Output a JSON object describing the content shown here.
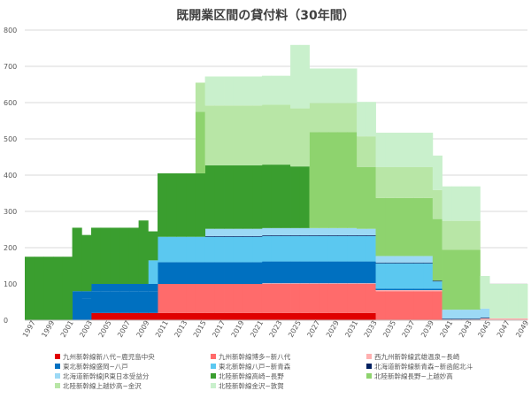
{
  "chart_data": {
    "type": "area",
    "stacked": true,
    "step": true,
    "title": "既開業区間の貸付料（30年間）",
    "xlabel": "",
    "ylabel": "",
    "ylim": [
      0,
      800
    ],
    "xlim": [
      1997,
      2050
    ],
    "y_ticks": [
      0,
      100,
      200,
      300,
      400,
      500,
      600,
      700,
      800
    ],
    "x_ticks": [
      1997,
      1999,
      2001,
      2003,
      2005,
      2007,
      2009,
      2011,
      2013,
      2015,
      2017,
      2019,
      2021,
      2023,
      2025,
      2027,
      2029,
      2031,
      2033,
      2035,
      2037,
      2039,
      2041,
      2043,
      2045,
      2047,
      2049
    ],
    "legend_position": "bottom",
    "series": [
      {
        "name": "九州新幹線新八代~鹿児島中央",
        "color": "#e00000",
        "start": 2004,
        "end": 2034,
        "value": 20
      },
      {
        "name": "九州新幹線博多~新八代",
        "color": "#ff6b6b",
        "start": 2011,
        "end": 2041,
        "value": 80
      },
      {
        "name": "西九州新幹線武雄温泉~長崎",
        "color": "#ffb0b0",
        "start": 2022,
        "end": 2052,
        "value": 5
      },
      {
        "name": "東北新幹線盛岡~八戸",
        "color": "#0070c0",
        "start": 2002,
        "end": 2032,
        "value": 80
      },
      {
        "name": "東北新幹線八戸~新青森",
        "color": "#5bc8f0",
        "start": 2010,
        "end": 2040,
        "value": 70
      },
      {
        "name": "北海道新幹線新青森~新函館北斗",
        "color": "#002060",
        "start": 2016,
        "end": 2046,
        "value": 1
      },
      {
        "name": "北海道新幹線JR東日本受益分",
        "color": "#9cd9f5",
        "start": 2016,
        "end": 2046,
        "value": 20
      },
      {
        "name": "北陸新幹線高崎~長野",
        "color": "#3a9e2f",
        "start": 1997,
        "end": 2027,
        "value": 175
      },
      {
        "name": "北陸新幹線長野~上越妙高",
        "color": "#8ed36e",
        "start": 2015,
        "end": 2045,
        "value": 165
      },
      {
        "name": "北陸新幹線上越妙高~金沢",
        "color": "#b8e6a6",
        "start": 2015,
        "end": 2045,
        "value": 80
      },
      {
        "name": "北陸新幹線金沢~敦賀",
        "color": "#c9f0cc",
        "start": 2024,
        "end": 2054,
        "value": 95
      }
    ],
    "segments": [
      {
        "series": 0,
        "x0": 2004,
        "x1": 2034,
        "v": 20
      },
      {
        "series": 1,
        "x0": 2011,
        "x1": 2041,
        "v": 80
      },
      {
        "series": 2,
        "x0": 2022,
        "x1": 2034,
        "v": 2
      },
      {
        "series": 2,
        "x0": 2034,
        "x1": 2041,
        "v": 3
      },
      {
        "series": 2,
        "x0": 2041,
        "x1": 2045,
        "v": 2
      },
      {
        "series": 2,
        "x0": 2045,
        "x1": 2050,
        "v": 5
      },
      {
        "series": 3,
        "x0": 2003,
        "x1": 2032,
        "v": 60
      },
      {
        "series": 3,
        "x0": 2002,
        "x1": 2003,
        "v": 80
      },
      {
        "series": 3,
        "x0": 2003,
        "x1": 2011,
        "v": 20
      },
      {
        "series": 3,
        "x0": 2032,
        "x1": 2034,
        "v": 60
      },
      {
        "series": 3,
        "x0": 2034,
        "x1": 2041,
        "v": 4
      },
      {
        "series": 4,
        "x0": 2010,
        "x1": 2011,
        "v": 65
      },
      {
        "series": 4,
        "x0": 2011,
        "x1": 2040,
        "v": 70
      },
      {
        "series": 4,
        "x0": 2040,
        "x1": 2041,
        "v": 20
      },
      {
        "series": 5,
        "x0": 2016,
        "x1": 2034,
        "v": 2
      },
      {
        "series": 5,
        "x0": 2034,
        "x1": 2046,
        "v": 2
      },
      {
        "series": 6,
        "x0": 2016,
        "x1": 2032,
        "v": 20
      },
      {
        "series": 6,
        "x0": 2032,
        "x1": 2034,
        "v": 18
      },
      {
        "series": 6,
        "x0": 2034,
        "x1": 2040,
        "v": 18
      },
      {
        "series": 6,
        "x0": 2041,
        "x1": 2046,
        "v": 25
      },
      {
        "series": 7,
        "x0": 1997,
        "x1": 2002,
        "v": 175
      },
      {
        "series": 7,
        "x0": 2002,
        "x1": 2003,
        "v": 175
      },
      {
        "series": 7,
        "x0": 2003,
        "x1": 2009,
        "v": 155
      },
      {
        "series": 7,
        "x0": 2009,
        "x1": 2010,
        "v": 175
      },
      {
        "series": 7,
        "x0": 2010,
        "x1": 2011,
        "v": 80
      },
      {
        "series": 7,
        "x0": 2011,
        "x1": 2016,
        "v": 175
      },
      {
        "series": 7,
        "x0": 2016,
        "x1": 2025,
        "v": 175
      },
      {
        "series": 7,
        "x0": 2025,
        "x1": 2027,
        "v": 170
      },
      {
        "series": 8,
        "x0": 2015,
        "x1": 2016,
        "v": 170
      },
      {
        "series": 8,
        "x0": 2027,
        "x1": 2032,
        "v": 265
      },
      {
        "series": 8,
        "x0": 2032,
        "x1": 2034,
        "v": 170
      },
      {
        "series": 8,
        "x0": 2034,
        "x1": 2040,
        "v": 160
      },
      {
        "series": 8,
        "x0": 2040,
        "x1": 2041,
        "v": 170
      },
      {
        "series": 8,
        "x0": 2041,
        "x1": 2045,
        "v": 165
      },
      {
        "series": 9,
        "x0": 2015,
        "x1": 2016,
        "v": 80
      },
      {
        "series": 9,
        "x0": 2016,
        "x1": 2025,
        "v": 165
      },
      {
        "series": 9,
        "x0": 2025,
        "x1": 2027,
        "v": 160
      },
      {
        "series": 9,
        "x0": 2027,
        "x1": 2032,
        "v": 80
      },
      {
        "series": 9,
        "x0": 2032,
        "x1": 2034,
        "v": 85
      },
      {
        "series": 9,
        "x0": 2034,
        "x1": 2040,
        "v": 85
      },
      {
        "series": 9,
        "x0": 2040,
        "x1": 2041,
        "v": 80
      },
      {
        "series": 9,
        "x0": 2041,
        "x1": 2045,
        "v": 80
      },
      {
        "series": 10,
        "x0": 2016,
        "x1": 2025,
        "v": 80
      },
      {
        "series": 10,
        "x0": 2025,
        "x1": 2027,
        "v": 175
      },
      {
        "series": 10,
        "x0": 2027,
        "x1": 2032,
        "v": 95
      },
      {
        "series": 10,
        "x0": 2032,
        "x1": 2034,
        "v": 95
      },
      {
        "series": 10,
        "x0": 2034,
        "x1": 2040,
        "v": 95
      },
      {
        "series": 10,
        "x0": 2040,
        "x1": 2041,
        "v": 95
      },
      {
        "series": 10,
        "x0": 2041,
        "x1": 2045,
        "v": 95
      },
      {
        "series": 10,
        "x0": 2045,
        "x1": 2046,
        "v": 90
      },
      {
        "series": 10,
        "x0": 2046,
        "x1": 2050,
        "v": 95
      }
    ]
  }
}
